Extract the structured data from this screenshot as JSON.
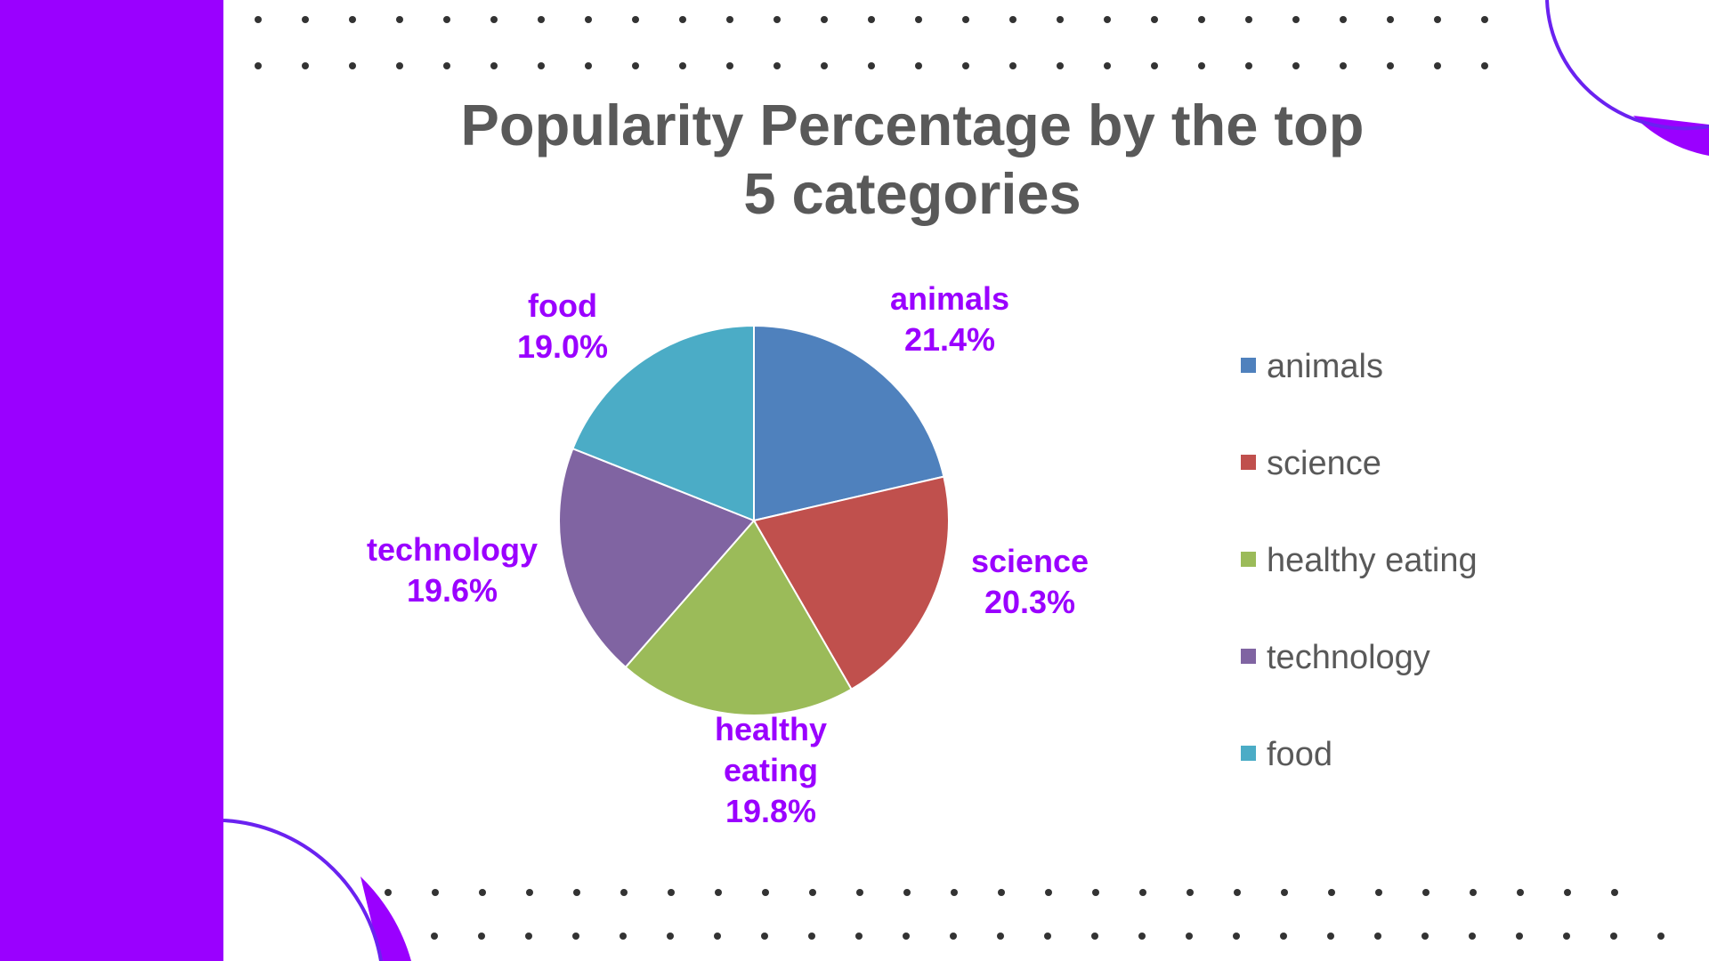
{
  "theme": {
    "sidebar_color": "#9a00ff",
    "accent_color": "#9a00ff",
    "arc_stroke_color": "#6a22f0",
    "dot_color": "#333333",
    "text_color": "#595959"
  },
  "chart_data": {
    "type": "pie",
    "title": "Popularity Percentage by the top 5 categories",
    "title_lines": [
      "Popularity Percentage by the top",
      "5 categories"
    ],
    "slices": [
      {
        "label": "animals",
        "value": 21.4,
        "percent_label": "21.4%",
        "color": "#4f81bd"
      },
      {
        "label": "science",
        "value": 20.3,
        "percent_label": "20.3%",
        "color": "#c0504d"
      },
      {
        "label": "healthy eating",
        "value": 19.8,
        "percent_label": "19.8%",
        "color": "#9bbb59"
      },
      {
        "label": "technology",
        "value": 19.6,
        "percent_label": "19.6%",
        "color": "#8064a2"
      },
      {
        "label": "food",
        "value": 19.0,
        "percent_label": "19.0%",
        "color": "#4bacc6"
      }
    ],
    "legend_position": "right",
    "start_angle": "top",
    "direction": "clockwise"
  }
}
